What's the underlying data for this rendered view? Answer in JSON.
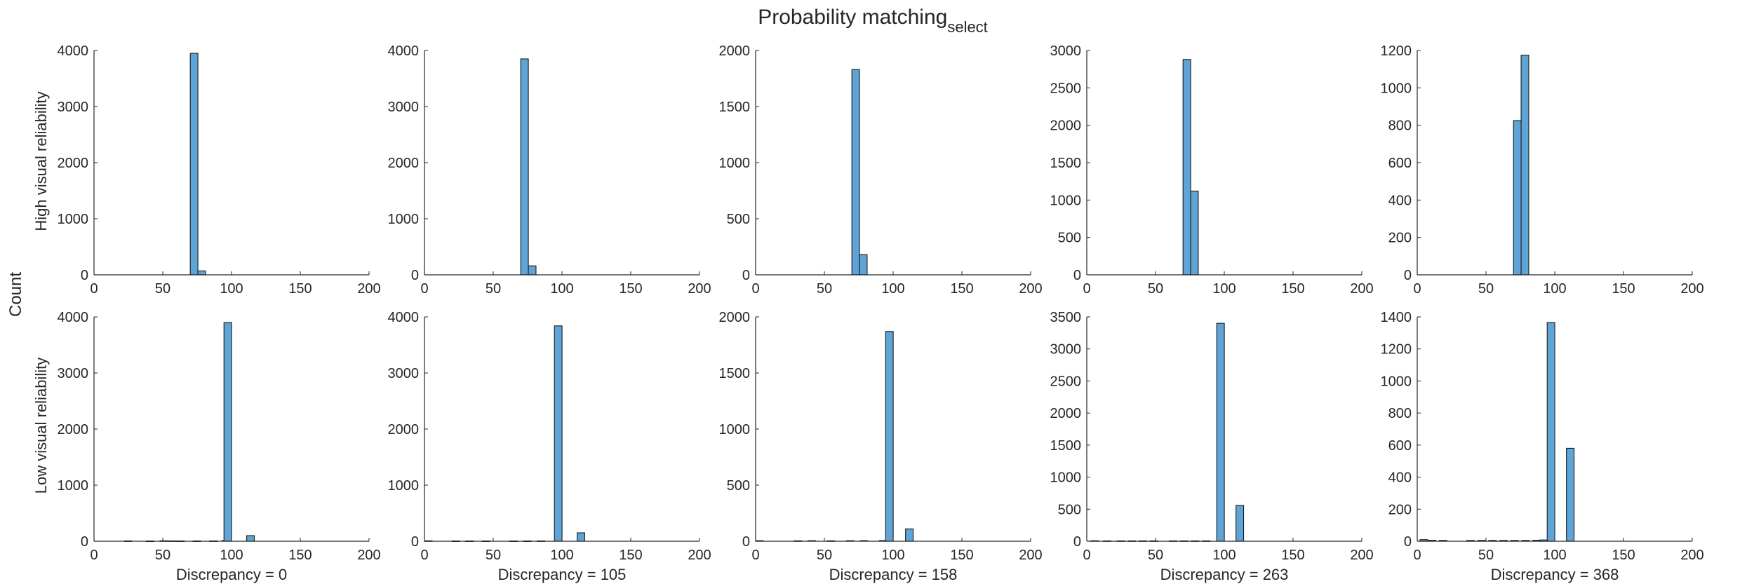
{
  "figure": {
    "title_main": "Probability matching",
    "title_sub": "select",
    "ylabel": "Count",
    "row_labels": [
      "High visual reliability",
      "Low visual reliability"
    ],
    "column_labels": [
      "Discrepancy = 0",
      "Discrepancy = 105",
      "Discrepancy = 158",
      "Discrepancy = 263",
      "Discrepancy = 368"
    ],
    "bar_color": "#5fa4d6",
    "bar_edge_color": "#1a1a1a"
  },
  "chart_data": [
    {
      "type": "bar",
      "row": 0,
      "col": 0,
      "xlim": [
        0,
        200
      ],
      "ylim": [
        0,
        4000
      ],
      "xticks": [
        0,
        50,
        100,
        150,
        200
      ],
      "yticks": [
        0,
        1000,
        2000,
        3000,
        4000
      ],
      "bin_width": 5.55,
      "bins": [
        [
          70,
          3950
        ],
        [
          75.55,
          70
        ]
      ]
    },
    {
      "type": "bar",
      "row": 0,
      "col": 1,
      "xlim": [
        0,
        200
      ],
      "ylim": [
        0,
        4000
      ],
      "xticks": [
        0,
        50,
        100,
        150,
        200
      ],
      "yticks": [
        0,
        1000,
        2000,
        3000,
        4000
      ],
      "bin_width": 5.55,
      "bins": [
        [
          70,
          3850
        ],
        [
          75.55,
          160
        ]
      ]
    },
    {
      "type": "bar",
      "row": 0,
      "col": 2,
      "xlim": [
        0,
        200
      ],
      "ylim": [
        0,
        2000
      ],
      "xticks": [
        0,
        50,
        100,
        150,
        200
      ],
      "yticks": [
        0,
        500,
        1000,
        1500,
        2000
      ],
      "bin_width": 5.55,
      "bins": [
        [
          70,
          1830
        ],
        [
          75.55,
          180
        ]
      ]
    },
    {
      "type": "bar",
      "row": 0,
      "col": 3,
      "xlim": [
        0,
        200
      ],
      "ylim": [
        0,
        3000
      ],
      "xticks": [
        0,
        50,
        100,
        150,
        200
      ],
      "yticks": [
        0,
        500,
        1000,
        1500,
        2000,
        2500,
        3000
      ],
      "bin_width": 5.55,
      "bins": [
        [
          70,
          2880
        ],
        [
          75.55,
          1120
        ]
      ]
    },
    {
      "type": "bar",
      "row": 0,
      "col": 4,
      "xlim": [
        0,
        200
      ],
      "ylim": [
        0,
        1200
      ],
      "xticks": [
        0,
        50,
        100,
        150,
        200
      ],
      "yticks": [
        0,
        200,
        400,
        600,
        800,
        1000,
        1200
      ],
      "bin_width": 5.55,
      "bins": [
        [
          70,
          825
        ],
        [
          75.55,
          1175
        ]
      ]
    },
    {
      "type": "bar",
      "row": 1,
      "col": 0,
      "xlim": [
        0,
        200
      ],
      "ylim": [
        0,
        4000
      ],
      "xticks": [
        0,
        50,
        100,
        150,
        200
      ],
      "yticks": [
        0,
        1000,
        2000,
        3000,
        4000
      ],
      "bin_width": 5.55,
      "bins": [
        [
          22,
          6
        ],
        [
          38,
          4
        ],
        [
          48,
          8
        ],
        [
          54,
          6
        ],
        [
          60,
          5
        ],
        [
          72,
          5
        ],
        [
          84,
          6
        ],
        [
          93,
          12
        ],
        [
          94.5,
          3900
        ],
        [
          111,
          100
        ]
      ]
    },
    {
      "type": "bar",
      "row": 1,
      "col": 1,
      "xlim": [
        0,
        200
      ],
      "ylim": [
        0,
        4000
      ],
      "xticks": [
        0,
        50,
        100,
        150,
        200
      ],
      "yticks": [
        0,
        1000,
        2000,
        3000,
        4000
      ],
      "bin_width": 5.55,
      "bins": [
        [
          0,
          8
        ],
        [
          20,
          5
        ],
        [
          30,
          5
        ],
        [
          42,
          5
        ],
        [
          62,
          5
        ],
        [
          72,
          5
        ],
        [
          82,
          6
        ],
        [
          94.5,
          3840
        ],
        [
          111,
          150
        ]
      ]
    },
    {
      "type": "bar",
      "row": 1,
      "col": 2,
      "xlim": [
        0,
        200
      ],
      "ylim": [
        0,
        2000
      ],
      "xticks": [
        0,
        50,
        100,
        150,
        200
      ],
      "yticks": [
        0,
        500,
        1000,
        1500,
        2000
      ],
      "bin_width": 5.55,
      "bins": [
        [
          0,
          5
        ],
        [
          28,
          4
        ],
        [
          38,
          5
        ],
        [
          52,
          4
        ],
        [
          66,
          5
        ],
        [
          76,
          5
        ],
        [
          90,
          6
        ],
        [
          94.5,
          1870
        ],
        [
          109,
          110
        ]
      ]
    },
    {
      "type": "bar",
      "row": 1,
      "col": 3,
      "xlim": [
        0,
        200
      ],
      "ylim": [
        0,
        3500
      ],
      "xticks": [
        0,
        50,
        100,
        150,
        200
      ],
      "yticks": [
        0,
        500,
        1000,
        1500,
        2000,
        2500,
        3000,
        3500
      ],
      "bin_width": 5.55,
      "bins": [
        [
          3,
          8
        ],
        [
          12,
          6
        ],
        [
          22,
          6
        ],
        [
          30,
          6
        ],
        [
          38,
          6
        ],
        [
          46,
          6
        ],
        [
          60,
          6
        ],
        [
          68,
          6
        ],
        [
          76,
          6
        ],
        [
          84,
          6
        ],
        [
          94.5,
          3400
        ],
        [
          108.5,
          560
        ]
      ]
    },
    {
      "type": "bar",
      "row": 1,
      "col": 4,
      "xlim": [
        0,
        200
      ],
      "ylim": [
        0,
        1400
      ],
      "xticks": [
        0,
        50,
        100,
        150,
        200
      ],
      "yticks": [
        0,
        200,
        400,
        600,
        800,
        1000,
        1200,
        1400
      ],
      "bin_width": 5.55,
      "bins": [
        [
          2,
          10
        ],
        [
          8,
          6
        ],
        [
          16,
          5
        ],
        [
          36,
          5
        ],
        [
          44,
          5
        ],
        [
          52,
          5
        ],
        [
          60,
          5
        ],
        [
          68,
          5
        ],
        [
          76,
          5
        ],
        [
          84,
          6
        ],
        [
          89,
          8
        ],
        [
          94.5,
          1365
        ],
        [
          108.5,
          580
        ]
      ]
    }
  ]
}
